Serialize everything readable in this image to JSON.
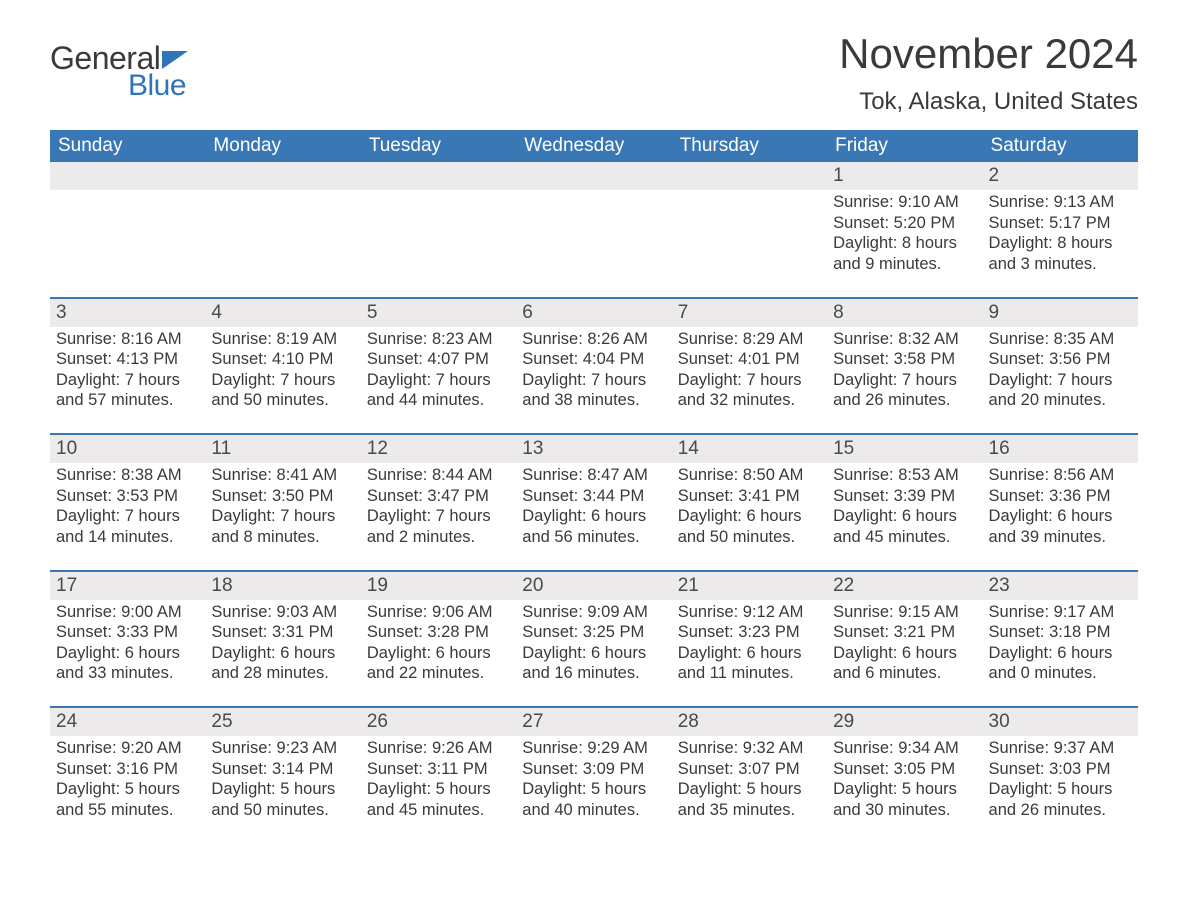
{
  "logo": {
    "text1": "General",
    "text2": "Blue"
  },
  "title": "November 2024",
  "location": "Tok, Alaska, United States",
  "colors": {
    "header_bg": "#3a78b5",
    "header_text": "#ffffff",
    "strip_bg": "#eceaea",
    "border": "#3a78b5",
    "text": "#3a3a3a",
    "logo_accent": "#2e75b6"
  },
  "weekdays": [
    "Sunday",
    "Monday",
    "Tuesday",
    "Wednesday",
    "Thursday",
    "Friday",
    "Saturday"
  ],
  "weeks": [
    [
      null,
      null,
      null,
      null,
      null,
      {
        "n": "1",
        "sr": "9:10 AM",
        "ss": "5:20 PM",
        "dl1": "8 hours",
        "dl2": "and 9 minutes."
      },
      {
        "n": "2",
        "sr": "9:13 AM",
        "ss": "5:17 PM",
        "dl1": "8 hours",
        "dl2": "and 3 minutes."
      }
    ],
    [
      {
        "n": "3",
        "sr": "8:16 AM",
        "ss": "4:13 PM",
        "dl1": "7 hours",
        "dl2": "and 57 minutes."
      },
      {
        "n": "4",
        "sr": "8:19 AM",
        "ss": "4:10 PM",
        "dl1": "7 hours",
        "dl2": "and 50 minutes."
      },
      {
        "n": "5",
        "sr": "8:23 AM",
        "ss": "4:07 PM",
        "dl1": "7 hours",
        "dl2": "and 44 minutes."
      },
      {
        "n": "6",
        "sr": "8:26 AM",
        "ss": "4:04 PM",
        "dl1": "7 hours",
        "dl2": "and 38 minutes."
      },
      {
        "n": "7",
        "sr": "8:29 AM",
        "ss": "4:01 PM",
        "dl1": "7 hours",
        "dl2": "and 32 minutes."
      },
      {
        "n": "8",
        "sr": "8:32 AM",
        "ss": "3:58 PM",
        "dl1": "7 hours",
        "dl2": "and 26 minutes."
      },
      {
        "n": "9",
        "sr": "8:35 AM",
        "ss": "3:56 PM",
        "dl1": "7 hours",
        "dl2": "and 20 minutes."
      }
    ],
    [
      {
        "n": "10",
        "sr": "8:38 AM",
        "ss": "3:53 PM",
        "dl1": "7 hours",
        "dl2": "and 14 minutes."
      },
      {
        "n": "11",
        "sr": "8:41 AM",
        "ss": "3:50 PM",
        "dl1": "7 hours",
        "dl2": "and 8 minutes."
      },
      {
        "n": "12",
        "sr": "8:44 AM",
        "ss": "3:47 PM",
        "dl1": "7 hours",
        "dl2": "and 2 minutes."
      },
      {
        "n": "13",
        "sr": "8:47 AM",
        "ss": "3:44 PM",
        "dl1": "6 hours",
        "dl2": "and 56 minutes."
      },
      {
        "n": "14",
        "sr": "8:50 AM",
        "ss": "3:41 PM",
        "dl1": "6 hours",
        "dl2": "and 50 minutes."
      },
      {
        "n": "15",
        "sr": "8:53 AM",
        "ss": "3:39 PM",
        "dl1": "6 hours",
        "dl2": "and 45 minutes."
      },
      {
        "n": "16",
        "sr": "8:56 AM",
        "ss": "3:36 PM",
        "dl1": "6 hours",
        "dl2": "and 39 minutes."
      }
    ],
    [
      {
        "n": "17",
        "sr": "9:00 AM",
        "ss": "3:33 PM",
        "dl1": "6 hours",
        "dl2": "and 33 minutes."
      },
      {
        "n": "18",
        "sr": "9:03 AM",
        "ss": "3:31 PM",
        "dl1": "6 hours",
        "dl2": "and 28 minutes."
      },
      {
        "n": "19",
        "sr": "9:06 AM",
        "ss": "3:28 PM",
        "dl1": "6 hours",
        "dl2": "and 22 minutes."
      },
      {
        "n": "20",
        "sr": "9:09 AM",
        "ss": "3:25 PM",
        "dl1": "6 hours",
        "dl2": "and 16 minutes."
      },
      {
        "n": "21",
        "sr": "9:12 AM",
        "ss": "3:23 PM",
        "dl1": "6 hours",
        "dl2": "and 11 minutes."
      },
      {
        "n": "22",
        "sr": "9:15 AM",
        "ss": "3:21 PM",
        "dl1": "6 hours",
        "dl2": "and 6 minutes."
      },
      {
        "n": "23",
        "sr": "9:17 AM",
        "ss": "3:18 PM",
        "dl1": "6 hours",
        "dl2": "and 0 minutes."
      }
    ],
    [
      {
        "n": "24",
        "sr": "9:20 AM",
        "ss": "3:16 PM",
        "dl1": "5 hours",
        "dl2": "and 55 minutes."
      },
      {
        "n": "25",
        "sr": "9:23 AM",
        "ss": "3:14 PM",
        "dl1": "5 hours",
        "dl2": "and 50 minutes."
      },
      {
        "n": "26",
        "sr": "9:26 AM",
        "ss": "3:11 PM",
        "dl1": "5 hours",
        "dl2": "and 45 minutes."
      },
      {
        "n": "27",
        "sr": "9:29 AM",
        "ss": "3:09 PM",
        "dl1": "5 hours",
        "dl2": "and 40 minutes."
      },
      {
        "n": "28",
        "sr": "9:32 AM",
        "ss": "3:07 PM",
        "dl1": "5 hours",
        "dl2": "and 35 minutes."
      },
      {
        "n": "29",
        "sr": "9:34 AM",
        "ss": "3:05 PM",
        "dl1": "5 hours",
        "dl2": "and 30 minutes."
      },
      {
        "n": "30",
        "sr": "9:37 AM",
        "ss": "3:03 PM",
        "dl1": "5 hours",
        "dl2": "and 26 minutes."
      }
    ]
  ],
  "labels": {
    "sunrise": "Sunrise: ",
    "sunset": "Sunset: ",
    "daylight": "Daylight: "
  }
}
